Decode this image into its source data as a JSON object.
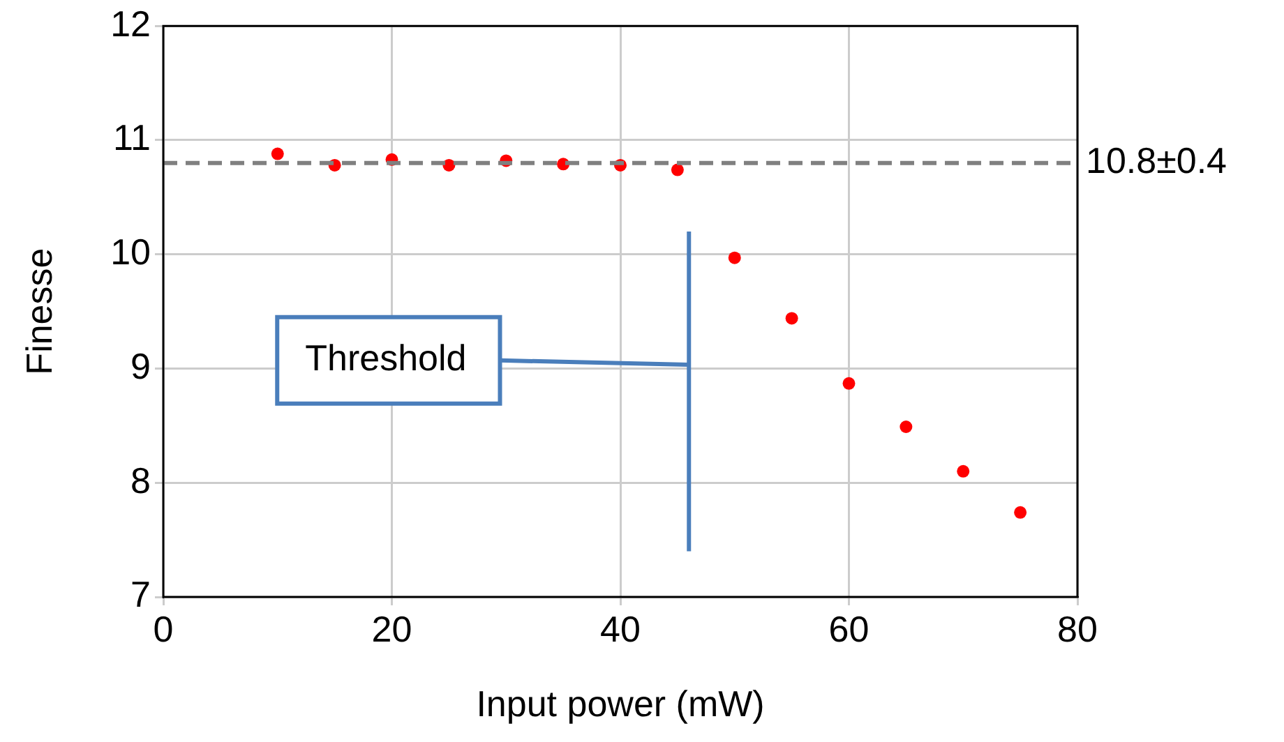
{
  "chart_data": {
    "type": "scatter",
    "xlabel": "Input power (mW)",
    "ylabel": "Finesse",
    "x": [
      10,
      15,
      20,
      25,
      30,
      35,
      40,
      45,
      50,
      55,
      60,
      65,
      70,
      75
    ],
    "series": [
      {
        "color": "#ff0000",
        "values": [
          10.88,
          10.78,
          10.83,
          10.78,
          10.82,
          10.79,
          10.78,
          10.74,
          9.97,
          9.44,
          8.87,
          8.49,
          8.1,
          7.74
        ]
      }
    ],
    "xlim": [
      0,
      80
    ],
    "xticks": [
      0,
      20,
      40,
      60,
      80
    ],
    "ylim": [
      7,
      12
    ],
    "yticks": [
      7,
      8,
      9,
      10,
      11,
      12
    ],
    "ref_lines": [
      {
        "axis": "y",
        "value": 10.8,
        "label": "10.8±0.4",
        "color": "#808080",
        "line_style": "dashed"
      },
      {
        "axis": "x",
        "value": 46,
        "label": "Threshold",
        "color": "#4a7ebb",
        "line_style": "solid"
      }
    ],
    "grid": true,
    "marker": "circle",
    "legend": false
  }
}
